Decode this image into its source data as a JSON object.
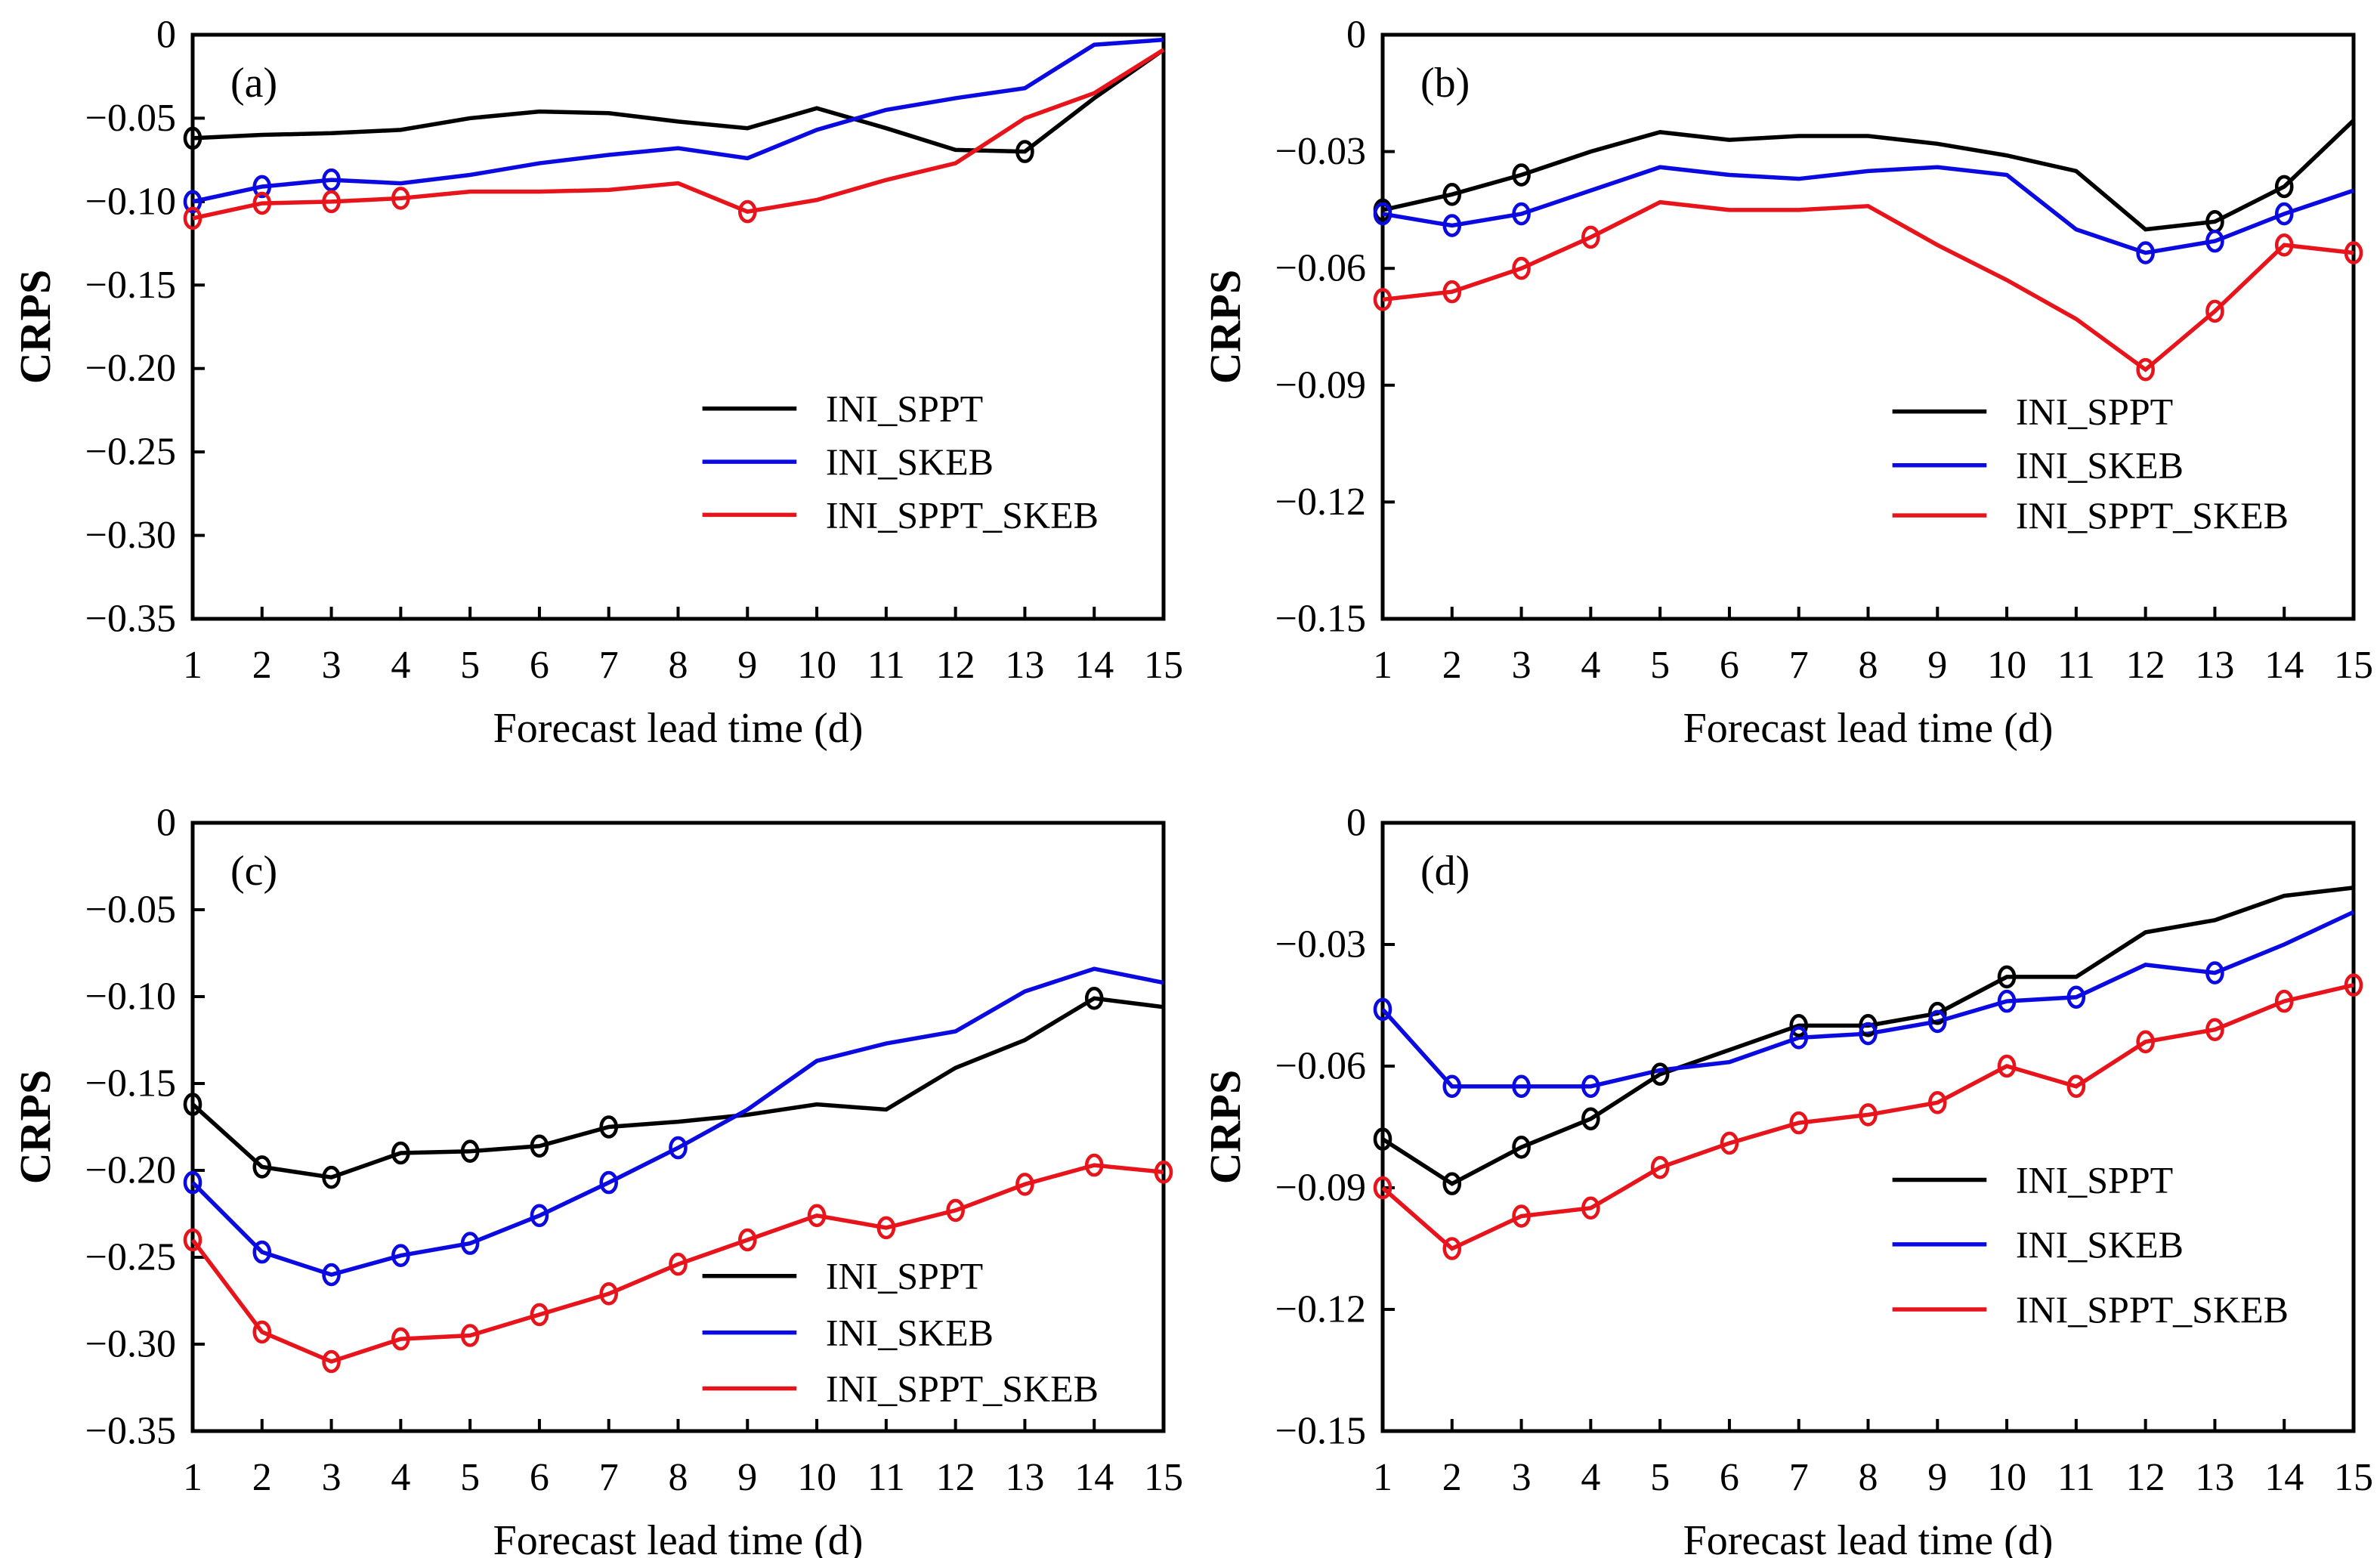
{
  "figure": {
    "ylabel": "CRPS",
    "xlabel": "Forecast lead time (d)",
    "x_categories": [
      "1",
      "2",
      "3",
      "4",
      "5",
      "6",
      "7",
      "8",
      "9",
      "10",
      "11",
      "12",
      "13",
      "14",
      "15"
    ],
    "legend_labels": [
      "INI_SPPT",
      "INI_SKEB",
      "INI_SPPT_SKEB"
    ],
    "series_colors": {
      "INI_SPPT": "#000000",
      "INI_SKEB": "#0a0ae1",
      "INI_SPPT_SKEB": "#e8141b"
    }
  },
  "chart_data": [
    {
      "id": "a",
      "panel_label": "(a)",
      "type": "line",
      "xlabel": "Forecast lead time (d)",
      "ylabel": "CRPS",
      "x": [
        1,
        2,
        3,
        4,
        5,
        6,
        7,
        8,
        9,
        10,
        11,
        12,
        13,
        14,
        15
      ],
      "ylim": [
        -0.35,
        0
      ],
      "yticks": [
        0,
        -0.05,
        -0.1,
        -0.15,
        -0.2,
        -0.25,
        -0.3,
        -0.35
      ],
      "ytick_labels": [
        "0",
        "−0.05",
        "−0.10",
        "−0.15",
        "−0.20",
        "−0.25",
        "−0.30",
        "−0.35"
      ],
      "grid": false,
      "legend_position": "center-right",
      "legend_row_fracs": [
        0.64,
        0.731,
        0.822
      ],
      "series": [
        {
          "name": "INI_SPPT",
          "color": "#000000",
          "values": [
            -0.062,
            -0.06,
            -0.059,
            -0.057,
            -0.05,
            -0.046,
            -0.047,
            -0.052,
            -0.056,
            -0.044,
            -0.056,
            -0.069,
            -0.07,
            -0.038,
            -0.009
          ],
          "marker_x": [
            1,
            13
          ]
        },
        {
          "name": "INI_SKEB",
          "color": "#0a0ae1",
          "values": [
            -0.1,
            -0.091,
            -0.087,
            -0.089,
            -0.084,
            -0.077,
            -0.072,
            -0.068,
            -0.074,
            -0.057,
            -0.045,
            -0.038,
            -0.032,
            -0.006,
            -0.003
          ],
          "marker_x": [
            1,
            2,
            3
          ]
        },
        {
          "name": "INI_SPPT_SKEB",
          "color": "#e8141b",
          "values": [
            -0.11,
            -0.101,
            -0.1,
            -0.098,
            -0.094,
            -0.094,
            -0.093,
            -0.089,
            -0.106,
            -0.099,
            -0.087,
            -0.077,
            -0.05,
            -0.035,
            -0.009
          ],
          "marker_x": [
            1,
            2,
            3,
            4,
            9
          ]
        }
      ]
    },
    {
      "id": "b",
      "panel_label": "(b)",
      "type": "line",
      "xlabel": "Forecast lead time (d)",
      "ylabel": "CRPS",
      "x": [
        1,
        2,
        3,
        4,
        5,
        6,
        7,
        8,
        9,
        10,
        11,
        12,
        13,
        14,
        15
      ],
      "ylim": [
        -0.15,
        0
      ],
      "yticks": [
        0,
        -0.03,
        -0.06,
        -0.09,
        -0.12,
        -0.15
      ],
      "ytick_labels": [
        "0",
        "−0.03",
        "−0.06",
        "−0.09",
        "−0.12",
        "−0.15"
      ],
      "grid": false,
      "legend_position": "center-right",
      "legend_row_fracs": [
        0.645,
        0.737,
        0.823
      ],
      "series": [
        {
          "name": "INI_SPPT",
          "color": "#000000",
          "values": [
            -0.045,
            -0.041,
            -0.036,
            -0.03,
            -0.025,
            -0.027,
            -0.026,
            -0.026,
            -0.028,
            -0.031,
            -0.035,
            -0.05,
            -0.048,
            -0.039,
            -0.022
          ],
          "marker_x": [
            1,
            2,
            3,
            13,
            14
          ]
        },
        {
          "name": "INI_SKEB",
          "color": "#0a0ae1",
          "values": [
            -0.046,
            -0.049,
            -0.046,
            -0.04,
            -0.034,
            -0.036,
            -0.037,
            -0.035,
            -0.034,
            -0.036,
            -0.05,
            -0.056,
            -0.053,
            -0.046,
            -0.04
          ],
          "marker_x": [
            1,
            2,
            3,
            12,
            13,
            14
          ]
        },
        {
          "name": "INI_SPPT_SKEB",
          "color": "#e8141b",
          "values": [
            -0.068,
            -0.066,
            -0.06,
            -0.052,
            -0.043,
            -0.045,
            -0.045,
            -0.044,
            -0.054,
            -0.063,
            -0.073,
            -0.086,
            -0.071,
            -0.054,
            -0.056
          ],
          "marker_x": [
            1,
            2,
            3,
            4,
            12,
            13,
            14,
            15
          ]
        }
      ]
    },
    {
      "id": "c",
      "panel_label": "(c)",
      "type": "line",
      "xlabel": "Forecast lead time (d)",
      "ylabel": "CRPS",
      "x": [
        1,
        2,
        3,
        4,
        5,
        6,
        7,
        8,
        9,
        10,
        11,
        12,
        13,
        14,
        15
      ],
      "ylim": [
        -0.35,
        0
      ],
      "yticks": [
        0,
        -0.05,
        -0.1,
        -0.15,
        -0.2,
        -0.25,
        -0.3,
        -0.35
      ],
      "ytick_labels": [
        "0",
        "−0.05",
        "−0.10",
        "−0.15",
        "−0.20",
        "−0.25",
        "−0.30",
        "−0.35"
      ],
      "grid": false,
      "legend_position": "lower-right",
      "legend_row_fracs": [
        0.745,
        0.838,
        0.93
      ],
      "series": [
        {
          "name": "INI_SPPT",
          "color": "#000000",
          "values": [
            -0.162,
            -0.198,
            -0.204,
            -0.19,
            -0.189,
            -0.186,
            -0.175,
            -0.172,
            -0.168,
            -0.162,
            -0.165,
            -0.141,
            -0.125,
            -0.101,
            -0.106
          ],
          "marker_x": [
            1,
            2,
            3,
            4,
            5,
            6,
            7,
            14
          ]
        },
        {
          "name": "INI_SKEB",
          "color": "#0a0ae1",
          "values": [
            -0.207,
            -0.247,
            -0.26,
            -0.249,
            -0.242,
            -0.226,
            -0.207,
            -0.187,
            -0.165,
            -0.137,
            -0.127,
            -0.12,
            -0.097,
            -0.084,
            -0.092
          ],
          "marker_x": [
            1,
            2,
            3,
            4,
            5,
            6,
            7,
            8
          ]
        },
        {
          "name": "INI_SPPT_SKEB",
          "color": "#e8141b",
          "values": [
            -0.24,
            -0.293,
            -0.31,
            -0.297,
            -0.295,
            -0.283,
            -0.271,
            -0.254,
            -0.24,
            -0.226,
            -0.233,
            -0.223,
            -0.208,
            -0.197,
            -0.201
          ],
          "marker_x": [
            1,
            2,
            3,
            4,
            5,
            6,
            7,
            8,
            9,
            10,
            11,
            12,
            13,
            14,
            15
          ]
        }
      ]
    },
    {
      "id": "d",
      "panel_label": "(d)",
      "type": "line",
      "xlabel": "Forecast lead time (d)",
      "ylabel": "CRPS",
      "x": [
        1,
        2,
        3,
        4,
        5,
        6,
        7,
        8,
        9,
        10,
        11,
        12,
        13,
        14,
        15
      ],
      "ylim": [
        -0.15,
        0
      ],
      "yticks": [
        0,
        -0.03,
        -0.06,
        -0.09,
        -0.12,
        -0.15
      ],
      "ytick_labels": [
        "0",
        "−0.03",
        "−0.06",
        "−0.09",
        "−0.12",
        "−0.15"
      ],
      "grid": false,
      "legend_position": "center-right",
      "legend_row_fracs": [
        0.587,
        0.693,
        0.8
      ],
      "series": [
        {
          "name": "INI_SPPT",
          "color": "#000000",
          "values": [
            -0.078,
            -0.089,
            -0.08,
            -0.073,
            -0.062,
            -0.056,
            -0.05,
            -0.05,
            -0.047,
            -0.038,
            -0.038,
            -0.027,
            -0.024,
            -0.018,
            -0.016
          ],
          "marker_x": [
            1,
            2,
            3,
            4,
            5,
            7,
            8,
            9,
            10
          ]
        },
        {
          "name": "INI_SKEB",
          "color": "#0a0ae1",
          "values": [
            -0.046,
            -0.065,
            -0.065,
            -0.065,
            -0.061,
            -0.059,
            -0.053,
            -0.052,
            -0.049,
            -0.044,
            -0.043,
            -0.035,
            -0.037,
            -0.03,
            -0.022
          ],
          "marker_x": [
            1,
            2,
            3,
            4,
            7,
            8,
            9,
            10,
            11,
            13
          ]
        },
        {
          "name": "INI_SPPT_SKEB",
          "color": "#e8141b",
          "values": [
            -0.09,
            -0.105,
            -0.097,
            -0.095,
            -0.085,
            -0.079,
            -0.074,
            -0.072,
            -0.069,
            -0.06,
            -0.065,
            -0.054,
            -0.051,
            -0.044,
            -0.04
          ],
          "marker_x": [
            1,
            2,
            3,
            4,
            5,
            6,
            7,
            8,
            9,
            10,
            11,
            12,
            13,
            14,
            15
          ]
        }
      ]
    }
  ]
}
